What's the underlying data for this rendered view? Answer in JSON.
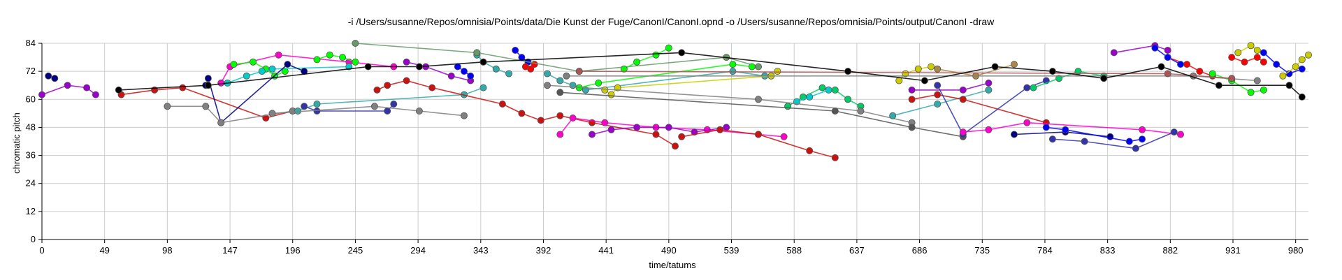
{
  "chart_data": {
    "type": "scatter",
    "title": "-i /Users/susanne/Repos/omnisia/Points/data/Die Kunst der Fuge/CanonI/CanonI.opnd -o /Users/susanne/Repos/omnisia/Points/output/CanonI -draw",
    "xlabel": "time/tatums",
    "ylabel": "chromatic pitch",
    "xlim": [
      0,
      990
    ],
    "ylim": [
      0,
      84
    ],
    "xticks": [
      "0",
      "49",
      "98",
      "147",
      "196",
      "245",
      "294",
      "343",
      "392",
      "441",
      "490",
      "539",
      "588",
      "637",
      "686",
      "735",
      "784",
      "833",
      "882",
      "931",
      "980"
    ],
    "yticks": [
      "0",
      "12",
      "24",
      "36",
      "48",
      "60",
      "72",
      "84"
    ],
    "grid": true,
    "series": [
      {
        "color": "#9900cc",
        "points": [
          [
            0,
            62
          ],
          [
            20,
            66
          ],
          [
            35,
            65
          ],
          [
            42,
            62
          ]
        ]
      },
      {
        "color": "#000080",
        "points": [
          [
            5,
            70
          ],
          [
            10,
            69
          ]
        ]
      },
      {
        "color": "#cc1111",
        "points": [
          [
            62,
            62
          ],
          [
            88,
            64
          ],
          [
            110,
            65
          ],
          [
            175,
            52
          ],
          [
            196,
            55
          ]
        ]
      },
      {
        "color": "#ff00cc",
        "points": [
          [
            140,
            67
          ],
          [
            147,
            74
          ],
          [
            185,
            79
          ],
          [
            240,
            76
          ],
          [
            275,
            74
          ]
        ]
      },
      {
        "color": "#00ff00",
        "points": [
          [
            150,
            75
          ],
          [
            165,
            76
          ],
          [
            175,
            73
          ],
          [
            182,
            70
          ],
          [
            190,
            72
          ]
        ]
      },
      {
        "color": "#00cccc",
        "points": [
          [
            145,
            67
          ],
          [
            160,
            70
          ],
          [
            172,
            72
          ],
          [
            180,
            73
          ],
          [
            240,
            74
          ]
        ]
      },
      {
        "color": "#000080",
        "points": [
          [
            128,
            66
          ],
          [
            130,
            69
          ],
          [
            140,
            50
          ],
          [
            192,
            75
          ],
          [
            205,
            72
          ]
        ]
      },
      {
        "color": "#808080",
        "points": [
          [
            98,
            57
          ],
          [
            128,
            57
          ],
          [
            140,
            50
          ],
          [
            196,
            55
          ]
        ]
      },
      {
        "color": "#33aaaa",
        "points": [
          [
            200,
            55
          ],
          [
            215,
            58
          ],
          [
            330,
            62
          ],
          [
            345,
            65
          ]
        ]
      },
      {
        "color": "#3333aa",
        "points": [
          [
            205,
            57
          ],
          [
            215,
            55
          ],
          [
            270,
            55
          ],
          [
            275,
            58
          ]
        ]
      },
      {
        "color": "#00ff00",
        "points": [
          [
            215,
            77
          ],
          [
            225,
            79
          ],
          [
            235,
            78
          ],
          [
            245,
            76
          ]
        ]
      },
      {
        "color": "#cc1111",
        "points": [
          [
            262,
            64
          ],
          [
            270,
            66
          ],
          [
            285,
            68
          ],
          [
            305,
            65
          ],
          [
            360,
            58
          ],
          [
            375,
            54
          ],
          [
            390,
            51
          ],
          [
            405,
            53
          ],
          [
            430,
            50
          ],
          [
            480,
            45
          ],
          [
            495,
            40
          ]
        ]
      },
      {
        "color": "#808080",
        "points": [
          [
            180,
            54
          ],
          [
            260,
            57
          ],
          [
            295,
            55
          ],
          [
            330,
            53
          ]
        ]
      },
      {
        "color": "#9900cc",
        "points": [
          [
            285,
            76
          ],
          [
            300,
            74
          ],
          [
            320,
            70
          ],
          [
            335,
            68
          ]
        ]
      },
      {
        "color": "#0000ff",
        "points": [
          [
            325,
            74
          ],
          [
            330,
            72
          ],
          [
            335,
            70
          ]
        ]
      },
      {
        "color": "#33aaaa",
        "points": [
          [
            340,
            79
          ],
          [
            345,
            76
          ],
          [
            355,
            73
          ],
          [
            365,
            71
          ]
        ]
      },
      {
        "color": "#0000ff",
        "points": [
          [
            370,
            81
          ],
          [
            375,
            78
          ],
          [
            380,
            76
          ]
        ]
      },
      {
        "color": "#ff0000",
        "points": [
          [
            378,
            74
          ],
          [
            382,
            73
          ],
          [
            385,
            75
          ]
        ]
      },
      {
        "color": "#ff00cc",
        "points": [
          [
            405,
            45
          ],
          [
            415,
            52
          ],
          [
            440,
            50
          ],
          [
            480,
            48
          ],
          [
            520,
            47
          ],
          [
            560,
            45
          ],
          [
            580,
            44
          ]
        ]
      },
      {
        "color": "#9900cc",
        "points": [
          [
            430,
            45
          ],
          [
            445,
            47
          ],
          [
            465,
            48
          ],
          [
            490,
            48
          ],
          [
            510,
            46
          ],
          [
            535,
            48
          ]
        ]
      },
      {
        "color": "#cc1111",
        "points": [
          [
            500,
            44
          ],
          [
            530,
            47
          ],
          [
            560,
            45
          ],
          [
            600,
            38
          ],
          [
            620,
            35
          ]
        ]
      },
      {
        "color": "#33aaaa",
        "points": [
          [
            395,
            71
          ],
          [
            405,
            68
          ],
          [
            415,
            66
          ],
          [
            425,
            64
          ],
          [
            540,
            72
          ],
          [
            565,
            70
          ]
        ]
      },
      {
        "color": "#669966",
        "points": [
          [
            245,
            84
          ],
          [
            340,
            80
          ],
          [
            420,
            72
          ],
          [
            535,
            78
          ],
          [
            560,
            74
          ]
        ]
      },
      {
        "color": "#00ff00",
        "points": [
          [
            455,
            73
          ],
          [
            465,
            76
          ],
          [
            480,
            79
          ],
          [
            490,
            82
          ]
        ]
      },
      {
        "color": "#cccc00",
        "points": [
          [
            440,
            64
          ],
          [
            445,
            62
          ],
          [
            450,
            65
          ],
          [
            570,
            70
          ],
          [
            575,
            72
          ]
        ]
      },
      {
        "color": "#00ff00",
        "points": [
          [
            420,
            65
          ],
          [
            435,
            67
          ],
          [
            540,
            75
          ],
          [
            555,
            74
          ]
        ]
      },
      {
        "color": "#00cc66",
        "points": [
          [
            583,
            57
          ],
          [
            595,
            61
          ],
          [
            610,
            65
          ],
          [
            620,
            64
          ],
          [
            630,
            60
          ],
          [
            640,
            57
          ]
        ]
      },
      {
        "color": "#00cccc",
        "points": [
          [
            590,
            59
          ],
          [
            600,
            61
          ],
          [
            615,
            64
          ]
        ]
      },
      {
        "color": "#808080",
        "points": [
          [
            395,
            66
          ],
          [
            560,
            60
          ],
          [
            640,
            55
          ],
          [
            680,
            50
          ]
        ]
      },
      {
        "color": "#555555",
        "points": [
          [
            405,
            63
          ],
          [
            620,
            55
          ],
          [
            680,
            48
          ],
          [
            720,
            44
          ]
        ]
      },
      {
        "color": "#33aaaa",
        "points": [
          [
            665,
            53
          ],
          [
            700,
            58
          ],
          [
            740,
            64
          ]
        ]
      },
      {
        "color": "#9900cc",
        "points": [
          [
            680,
            64
          ],
          [
            720,
            64
          ],
          [
            740,
            67
          ]
        ]
      },
      {
        "color": "#cccc00",
        "points": [
          [
            670,
            68
          ],
          [
            675,
            71
          ],
          [
            685,
            73
          ],
          [
            695,
            74
          ]
        ]
      },
      {
        "color": "#cc1111",
        "points": [
          [
            680,
            60
          ],
          [
            700,
            62
          ],
          [
            720,
            60
          ],
          [
            785,
            50
          ]
        ]
      },
      {
        "color": "#aa8844",
        "points": [
          [
            700,
            73
          ],
          [
            730,
            70
          ],
          [
            760,
            75
          ]
        ]
      },
      {
        "color": "#3333aa",
        "points": [
          [
            700,
            66
          ],
          [
            720,
            45
          ],
          [
            770,
            65
          ],
          [
            785,
            68
          ]
        ]
      },
      {
        "color": "#ff00cc",
        "points": [
          [
            720,
            46
          ],
          [
            740,
            47
          ],
          [
            770,
            50
          ],
          [
            860,
            47
          ],
          [
            890,
            45
          ]
        ]
      },
      {
        "color": "#000080",
        "points": [
          [
            760,
            45
          ],
          [
            800,
            46
          ],
          [
            835,
            44
          ]
        ]
      },
      {
        "color": "#0000ff",
        "points": [
          [
            785,
            48
          ],
          [
            800,
            47
          ],
          [
            850,
            42
          ],
          [
            860,
            43
          ]
        ]
      },
      {
        "color": "#3333aa",
        "points": [
          [
            790,
            43
          ],
          [
            815,
            42
          ],
          [
            855,
            39
          ],
          [
            885,
            46
          ]
        ]
      },
      {
        "color": "#00cc66",
        "points": [
          [
            775,
            65
          ],
          [
            795,
            69
          ],
          [
            810,
            72
          ],
          [
            830,
            70
          ]
        ]
      },
      {
        "color": "#9900cc",
        "points": [
          [
            838,
            80
          ],
          [
            870,
            83
          ],
          [
            880,
            81
          ]
        ]
      },
      {
        "color": "#ff0000",
        "points": [
          [
            880,
            78
          ],
          [
            895,
            75
          ],
          [
            905,
            72
          ],
          [
            915,
            70
          ]
        ]
      },
      {
        "color": "#0000ff",
        "points": [
          [
            870,
            82
          ],
          [
            880,
            78
          ],
          [
            890,
            75
          ]
        ]
      },
      {
        "color": "#cccc00",
        "points": [
          [
            935,
            80
          ],
          [
            945,
            83
          ],
          [
            950,
            81
          ]
        ]
      },
      {
        "color": "#ff0000",
        "points": [
          [
            930,
            78
          ],
          [
            940,
            76
          ],
          [
            950,
            78
          ],
          [
            955,
            76
          ]
        ]
      },
      {
        "color": "#00ff00",
        "points": [
          [
            915,
            71
          ],
          [
            930,
            68
          ],
          [
            945,
            63
          ],
          [
            955,
            64
          ]
        ]
      },
      {
        "color": "#0000ff",
        "points": [
          [
            955,
            80
          ],
          [
            965,
            75
          ],
          [
            975,
            71
          ],
          [
            985,
            73
          ]
        ]
      },
      {
        "color": "#cccc00",
        "points": [
          [
            970,
            70
          ],
          [
            980,
            74
          ],
          [
            985,
            77
          ],
          [
            990,
            79
          ]
        ]
      },
      {
        "color": "#808080",
        "points": [
          [
            410,
            70
          ],
          [
            900,
            70
          ],
          [
            950,
            68
          ]
        ]
      },
      {
        "color": "#aa5555",
        "points": [
          [
            420,
            72
          ],
          [
            880,
            71
          ],
          [
            930,
            69
          ]
        ]
      },
      {
        "color": "#000000",
        "points": [
          [
            60,
            64
          ],
          [
            130,
            66
          ],
          [
            255,
            74
          ],
          [
            295,
            74
          ],
          [
            345,
            76
          ],
          [
            500,
            80
          ],
          [
            630,
            72
          ],
          [
            690,
            68
          ],
          [
            745,
            74
          ],
          [
            790,
            72
          ],
          [
            830,
            69
          ],
          [
            875,
            74
          ],
          [
            920,
            66
          ],
          [
            975,
            66
          ],
          [
            985,
            61
          ]
        ]
      }
    ]
  }
}
